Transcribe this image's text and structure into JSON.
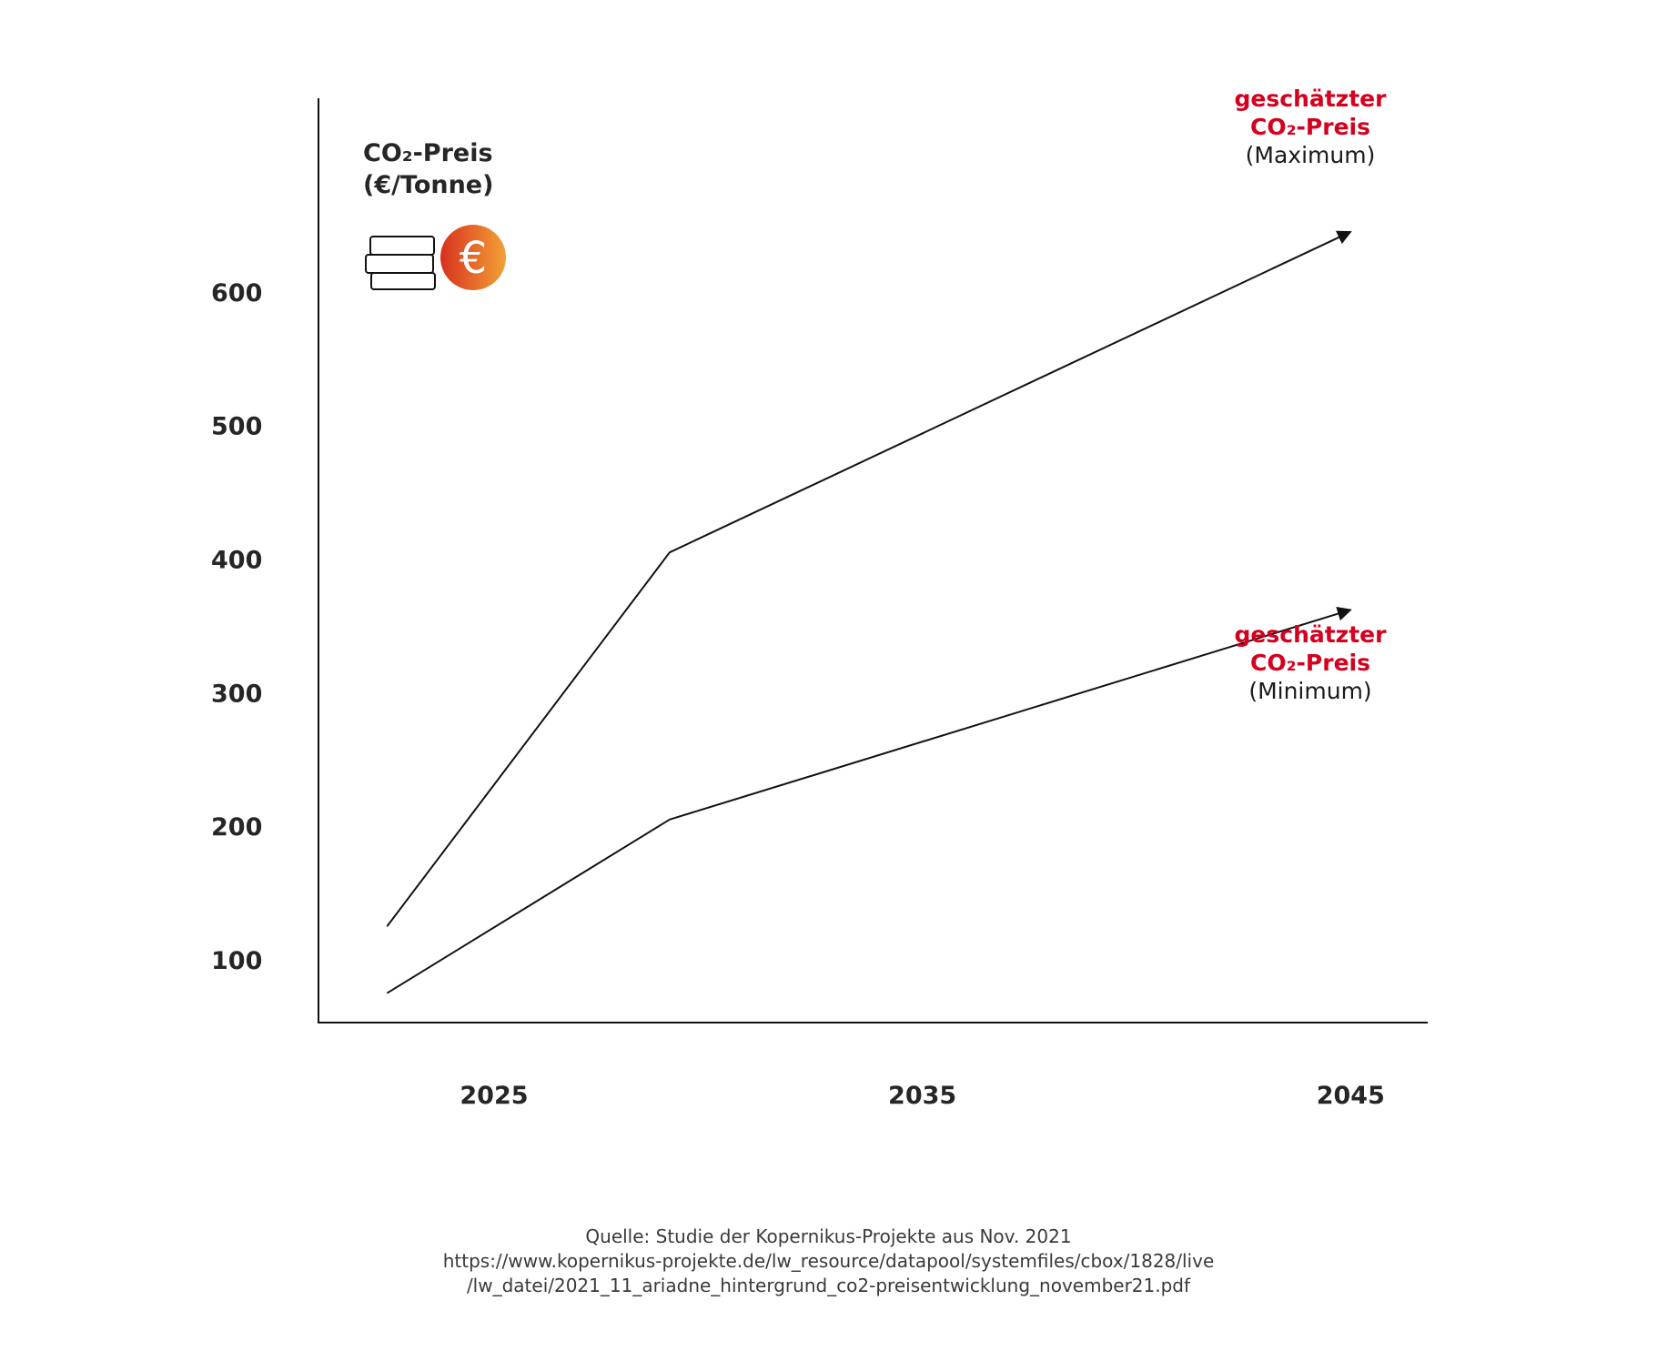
{
  "chart_data": {
    "type": "line",
    "title": "",
    "ylabel_line1": "CO₂-Preis",
    "ylabel_line2": "(€/Tonne)",
    "xlabel": "",
    "x_ticks": [
      "2025",
      "2035",
      "2045"
    ],
    "y_ticks": [
      "100",
      "200",
      "300",
      "400",
      "500",
      "600"
    ],
    "ylim": [
      53,
      745
    ],
    "xlim": [
      2020.9,
      2046.8
    ],
    "grid": false,
    "series": [
      {
        "key": "max",
        "x": [
          2022.5,
          2029.1,
          2045
        ],
        "y": [
          125,
          405,
          645
        ],
        "arrow_end": true
      },
      {
        "key": "min",
        "x": [
          2022.5,
          2029.1,
          2045
        ],
        "y": [
          75,
          205,
          362
        ],
        "arrow_end": true
      }
    ],
    "annotations": {
      "max": {
        "line1": "geschätzter",
        "line2": "CO₂-Preis",
        "line3": "(Maximum)"
      },
      "min": {
        "line1": "geschätzter",
        "line2": "CO₂-Preis",
        "line3": "(Minimum)"
      }
    },
    "colors": {
      "line": "#111111",
      "axis": "#111111",
      "annotation_highlight": "#d4001e",
      "icon_gradient_start": "#d8301e",
      "icon_gradient_end": "#f2a236"
    },
    "icon": "coins-euro-icon"
  },
  "source": {
    "line1": "Quelle: Studie der Kopernikus-Projekte aus Nov. 2021",
    "line2": "https://www.kopernikus-projekte.de/lw_resource/datapool/systemfiles/cbox/1828/live",
    "line3": "/lw_datei/2021_11_ariadne_hintergrund_co2-preisentwicklung_november21.pdf"
  }
}
